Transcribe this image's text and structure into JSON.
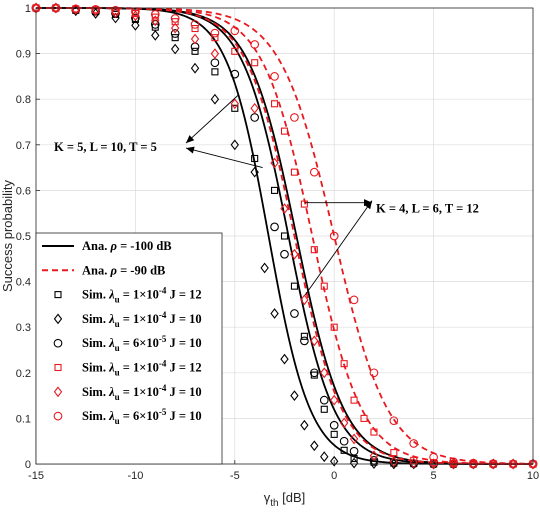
{
  "chart_data": {
    "type": "line",
    "xlabel": "γth [dB]",
    "xlabel_main": "γ",
    "xlabel_sub": "th",
    "xlabel_unit": " [dB]",
    "ylabel": "Success probability",
    "xlim": [
      -15,
      10
    ],
    "ylim": [
      0,
      1
    ],
    "xticks": [
      -15,
      -10,
      -5,
      0,
      5,
      10
    ],
    "yticks": [
      0,
      0.1,
      0.2,
      0.3,
      0.4,
      0.5,
      0.6,
      0.7,
      0.8,
      0.9,
      1
    ],
    "grid": true,
    "legend_placement": "bottom-left",
    "colors": {
      "black": "#000000",
      "red": "#e8191f",
      "grid": "#dcdcdc"
    },
    "legend": [
      {
        "id": "ana-100",
        "prefix": "Ana. ",
        "sym": "ρ",
        "rest": " = -100 dB",
        "color": "#000000",
        "kind": "solid"
      },
      {
        "id": "ana-90",
        "prefix": "Ana. ",
        "sym": "ρ",
        "rest": " = -90 dB",
        "color": "#e8191f",
        "kind": "dashed"
      },
      {
        "id": "sim-b-sq",
        "prefix": "Sim. ",
        "sym": "λ",
        "sub": "u",
        "mid": " = 1×10",
        "sup": "-4",
        "rest": " J = 12",
        "color": "#000000",
        "kind": "square"
      },
      {
        "id": "sim-b-di",
        "prefix": "Sim. ",
        "sym": "λ",
        "sub": "u",
        "mid": " = 1×10",
        "sup": "-4",
        "rest": " J = 10",
        "color": "#000000",
        "kind": "diamond"
      },
      {
        "id": "sim-b-ci",
        "prefix": "Sim. ",
        "sym": "λ",
        "sub": "u",
        "mid": " = 6×10",
        "sup": "-5",
        "rest": " J = 10",
        "color": "#000000",
        "kind": "circle"
      },
      {
        "id": "sim-r-sq",
        "prefix": "Sim. ",
        "sym": "λ",
        "sub": "u",
        "mid": " = 1×10",
        "sup": "-4",
        "rest": " J = 12",
        "color": "#e8191f",
        "kind": "square"
      },
      {
        "id": "sim-r-di",
        "prefix": "Sim. ",
        "sym": "λ",
        "sub": "u",
        "mid": " = 1×10",
        "sup": "-4",
        "rest": " J = 10",
        "color": "#e8191f",
        "kind": "diamond"
      },
      {
        "id": "sim-r-ci",
        "prefix": "Sim. ",
        "sym": "λ",
        "sub": "u",
        "mid": " = 6×10",
        "sup": "-5",
        "rest": " J = 10",
        "color": "#e8191f",
        "kind": "circle"
      }
    ],
    "annotations": [
      {
        "text": "K = 5, L = 10, T = 5",
        "targets": [
          [
            -4.8,
            0.81
          ],
          [
            -3.6,
            0.65
          ]
        ],
        "anchor": [
          -10.8,
          0.695
        ]
      },
      {
        "text": "K = 4, L = 6, T = 12",
        "targets": [
          [
            -1.6,
            0.56
          ],
          [
            1.4,
            0.56
          ]
        ],
        "anchor": [
          1.8,
          0.56
        ]
      }
    ],
    "series": [
      {
        "id": "b-sq",
        "color": "#000000",
        "marker": "square",
        "dashed": false,
        "points": [
          [
            -15,
            1
          ],
          [
            -14,
            1
          ],
          [
            -13,
            0.995
          ],
          [
            -12,
            0.992
          ],
          [
            -11,
            0.986
          ],
          [
            -10,
            0.975
          ],
          [
            -9,
            0.958
          ],
          [
            -8,
            0.935
          ],
          [
            -7,
            0.905
          ],
          [
            -6,
            0.86
          ],
          [
            -5,
            0.78
          ],
          [
            -4,
            0.67
          ],
          [
            -3,
            0.6
          ],
          [
            -2.5,
            0.5
          ],
          [
            -2,
            0.39
          ],
          [
            -1.5,
            0.28
          ],
          [
            -1,
            0.195
          ],
          [
            -0.5,
            0.12
          ],
          [
            0,
            0.065
          ],
          [
            0.5,
            0.03
          ],
          [
            1,
            0.012
          ],
          [
            2,
            0.004
          ],
          [
            3,
            0.002
          ],
          [
            4,
            0.001
          ],
          [
            5,
            0
          ],
          [
            6,
            0
          ],
          [
            7,
            0
          ],
          [
            8,
            0
          ],
          [
            9,
            0
          ],
          [
            10,
            0
          ]
        ]
      },
      {
        "id": "b-di",
        "color": "#000000",
        "marker": "diamond",
        "dashed": false,
        "points": [
          [
            -15,
            1
          ],
          [
            -14,
            1
          ],
          [
            -13,
            0.994
          ],
          [
            -12,
            0.988
          ],
          [
            -11,
            0.978
          ],
          [
            -10,
            0.962
          ],
          [
            -9,
            0.94
          ],
          [
            -8,
            0.91
          ],
          [
            -7,
            0.868
          ],
          [
            -6,
            0.8
          ],
          [
            -5,
            0.7
          ],
          [
            -4,
            0.64
          ],
          [
            -3.5,
            0.43
          ],
          [
            -3,
            0.33
          ],
          [
            -2.5,
            0.23
          ],
          [
            -2,
            0.15
          ],
          [
            -1.5,
            0.085
          ],
          [
            -1,
            0.04
          ],
          [
            -0.5,
            0.016
          ],
          [
            0,
            0.006
          ],
          [
            1,
            0.002
          ],
          [
            2,
            0.001
          ],
          [
            3,
            0
          ],
          [
            4,
            0
          ],
          [
            5,
            0
          ],
          [
            6,
            0
          ],
          [
            7,
            0
          ],
          [
            8,
            0
          ],
          [
            9,
            0
          ],
          [
            10,
            0
          ]
        ]
      },
      {
        "id": "b-ci",
        "color": "#000000",
        "marker": "circle",
        "dashed": false,
        "points": [
          [
            -15,
            1
          ],
          [
            -14,
            1
          ],
          [
            -13,
            0.996
          ],
          [
            -12,
            0.993
          ],
          [
            -11,
            0.988
          ],
          [
            -10,
            0.978
          ],
          [
            -9,
            0.964
          ],
          [
            -8,
            0.944
          ],
          [
            -7,
            0.915
          ],
          [
            -6,
            0.88
          ],
          [
            -5,
            0.855
          ],
          [
            -4,
            0.76
          ],
          [
            -3,
            0.52
          ],
          [
            -2.5,
            0.46
          ],
          [
            -2,
            0.33
          ],
          [
            -1.5,
            0.27
          ],
          [
            -1,
            0.2
          ],
          [
            -0.5,
            0.14
          ],
          [
            0,
            0.085
          ],
          [
            0.5,
            0.05
          ],
          [
            1,
            0.028
          ],
          [
            2,
            0.008
          ],
          [
            3,
            0.003
          ],
          [
            4,
            0.001
          ],
          [
            5,
            0
          ],
          [
            6,
            0
          ],
          [
            7,
            0
          ],
          [
            8,
            0
          ],
          [
            9,
            0
          ],
          [
            10,
            0
          ]
        ]
      },
      {
        "id": "r-sq",
        "color": "#e8191f",
        "marker": "square",
        "dashed": true,
        "points": [
          [
            -15,
            1
          ],
          [
            -14,
            1
          ],
          [
            -13,
            0.998
          ],
          [
            -12,
            0.996
          ],
          [
            -11,
            0.993
          ],
          [
            -10,
            0.988
          ],
          [
            -9,
            0.98
          ],
          [
            -8,
            0.97
          ],
          [
            -7,
            0.955
          ],
          [
            -6,
            0.935
          ],
          [
            -5,
            0.905
          ],
          [
            -4,
            0.88
          ],
          [
            -3,
            0.79
          ],
          [
            -2.5,
            0.73
          ],
          [
            -2,
            0.64
          ],
          [
            -1.5,
            0.57
          ],
          [
            -1,
            0.47
          ],
          [
            -0.5,
            0.39
          ],
          [
            0,
            0.3
          ],
          [
            0.5,
            0.22
          ],
          [
            1,
            0.14
          ],
          [
            1.5,
            0.1
          ],
          [
            2,
            0.07
          ],
          [
            3,
            0.025
          ],
          [
            4,
            0.008
          ],
          [
            5,
            0.003
          ],
          [
            6,
            0.001
          ],
          [
            7,
            0
          ],
          [
            8,
            0
          ],
          [
            9,
            0
          ],
          [
            10,
            0
          ]
        ]
      },
      {
        "id": "r-di",
        "color": "#e8191f",
        "marker": "diamond",
        "dashed": true,
        "points": [
          [
            -15,
            1
          ],
          [
            -14,
            1
          ],
          [
            -13,
            0.997
          ],
          [
            -12,
            0.994
          ],
          [
            -11,
            0.99
          ],
          [
            -10,
            0.983
          ],
          [
            -9,
            0.972
          ],
          [
            -8,
            0.956
          ],
          [
            -7,
            0.932
          ],
          [
            -6,
            0.9
          ],
          [
            -5,
            0.79
          ],
          [
            -4,
            0.78
          ],
          [
            -3,
            0.66
          ],
          [
            -2.5,
            0.56
          ],
          [
            -2,
            0.46
          ],
          [
            -1.5,
            0.36
          ],
          [
            -1,
            0.27
          ],
          [
            -0.5,
            0.2
          ],
          [
            0,
            0.14
          ],
          [
            0.5,
            0.09
          ],
          [
            1,
            0.055
          ],
          [
            2,
            0.018
          ],
          [
            3,
            0.005
          ],
          [
            4,
            0.002
          ],
          [
            5,
            0
          ],
          [
            6,
            0
          ],
          [
            7,
            0
          ],
          [
            8,
            0
          ],
          [
            9,
            0
          ],
          [
            10,
            0
          ]
        ]
      },
      {
        "id": "r-ci",
        "color": "#e8191f",
        "marker": "circle",
        "dashed": true,
        "points": [
          [
            -15,
            1
          ],
          [
            -14,
            1
          ],
          [
            -13,
            0.998
          ],
          [
            -12,
            0.997
          ],
          [
            -11,
            0.995
          ],
          [
            -10,
            0.992
          ],
          [
            -9,
            0.986
          ],
          [
            -8,
            0.977
          ],
          [
            -7,
            0.964
          ],
          [
            -6,
            0.945
          ],
          [
            -5,
            0.95
          ],
          [
            -4,
            0.92
          ],
          [
            -3,
            0.85
          ],
          [
            -2,
            0.76
          ],
          [
            -1,
            0.64
          ],
          [
            0,
            0.5
          ],
          [
            1,
            0.36
          ],
          [
            2,
            0.2
          ],
          [
            3,
            0.095
          ],
          [
            4,
            0.045
          ],
          [
            5,
            0.015
          ],
          [
            6,
            0.005
          ],
          [
            7,
            0.002
          ],
          [
            8,
            0.001
          ],
          [
            9,
            0
          ],
          [
            10,
            0
          ]
        ]
      }
    ],
    "curves": [
      {
        "id": "ana-b1",
        "color": "#000000",
        "dashed": false,
        "mid": -2.3,
        "scale": 1.15,
        "points_x": []
      },
      {
        "id": "ana-b2",
        "color": "#000000",
        "dashed": false,
        "mid": -3.3,
        "scale": 1.05
      },
      {
        "id": "ana-b3",
        "color": "#000000",
        "dashed": false,
        "mid": -1.9,
        "scale": 1.2
      },
      {
        "id": "ana-r1",
        "color": "#e8191f",
        "dashed": true,
        "mid": -1.1,
        "scale": 1.25
      },
      {
        "id": "ana-r2",
        "color": "#e8191f",
        "dashed": true,
        "mid": -2.0,
        "scale": 1.2
      },
      {
        "id": "ana-r3",
        "color": "#e8191f",
        "dashed": true,
        "mid": 0.0,
        "scale": 1.35
      }
    ]
  }
}
